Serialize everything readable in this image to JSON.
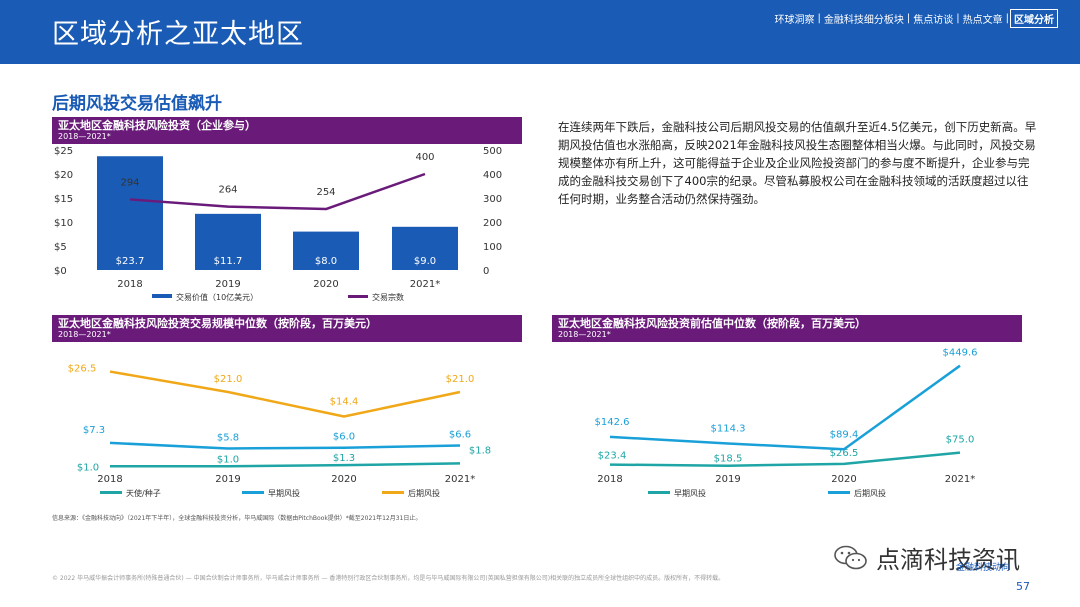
{
  "header": {
    "title": "区域分析之亚太地区",
    "nav": [
      {
        "label": "环球洞察",
        "active": false
      },
      {
        "label": "金融科技细分板块",
        "active": false
      },
      {
        "label": "焦点访谈",
        "active": false
      },
      {
        "label": "热点文章",
        "active": false
      },
      {
        "label": "区域分析",
        "active": true
      }
    ],
    "nav_separator": "|"
  },
  "section_title": "后期风投交易估值飙升",
  "body_text": "在连续两年下跌后，金融科技公司后期风投交易的估值飙升至近4.5亿美元，创下历史新高。早期风投估值也水涨船高，反映2021年金融科技风投生态圈整体相当火爆。与此同时，风投交易规模整体亦有所上升，这可能得益于企业及企业风险投资部门的参与度不断提升，企业参与完成的金融科技交易创下了400宗的纪录。尽管私募股权公司在金融科技领域的活跃度超过以往任何时期，业务整合活动仍然保持强劲。",
  "source": "信息来源：《金融科技动向》（2021年下半年），全球金融科技投资分析，毕马威国际（数据由PitchBook提供）*截至2021年12月31日止。",
  "footer_note": "© 2022 毕马威华振会计师事务所(特殊普通合伙) — 中国合伙制会计师事务所，毕马威会计师事务所 — 香港特别行政区合伙制事务所，均是与毕马威国际有限公司(英国私营担保有限公司)相关联的独立成员所全球性组织中的成员。版权所有，不得转载。",
  "watermark": "点滴科技资讯",
  "footer_link": "金融科技动向",
  "page_number": "57",
  "colors": {
    "header": "#1a5bb5",
    "chart_header": "#6a1b7a",
    "bar": "#1a5bb5",
    "line_purple": "#6a1b7a",
    "angel": "#1fa5a5",
    "early": "#1aa0d8",
    "late": "#f0a818"
  },
  "chart_data": [
    {
      "type": "bar",
      "title": "亚太地区金融科技风险投资（企业参与）",
      "subtitle": "2018—2021*",
      "categories": [
        "2018",
        "2019",
        "2020",
        "2021*"
      ],
      "series": [
        {
          "name": "交易价值（10亿美元）",
          "values": [
            23.7,
            11.7,
            8.0,
            9.0
          ],
          "labels": [
            "$23.7",
            "$11.7",
            "$8.0",
            "$9.0"
          ],
          "axis": "left"
        },
        {
          "name": "交易宗数",
          "type": "line",
          "values": [
            294,
            264,
            254,
            400
          ],
          "labels": [
            "294",
            "264",
            "254",
            "400"
          ],
          "axis": "right"
        }
      ],
      "y_left_ticks": [
        "$25",
        "$20",
        "$15",
        "$10",
        "$5",
        "$0"
      ],
      "y_left_range": [
        0,
        25
      ],
      "y_right_ticks": [
        "500",
        "400",
        "300",
        "200",
        "100",
        "0"
      ],
      "y_right_range": [
        0,
        500
      ]
    },
    {
      "type": "line",
      "title": "亚太地区金融科技风险投资交易规模中位数（按阶段，百万美元）",
      "subtitle": "2018—2021*",
      "categories": [
        "2018",
        "2019",
        "2020",
        "2021*"
      ],
      "y_range": [
        0,
        28
      ],
      "series": [
        {
          "name": "天使/种子",
          "values": [
            1.0,
            1.0,
            1.3,
            1.8
          ],
          "labels": [
            "$1.0",
            "$1.0",
            "$1.3",
            "$1.8"
          ]
        },
        {
          "name": "早期风投",
          "values": [
            7.3,
            5.8,
            6.0,
            6.6
          ],
          "labels": [
            "$7.3",
            "$5.8",
            "$6.0",
            "$6.6"
          ]
        },
        {
          "name": "后期风投",
          "values": [
            26.5,
            21.0,
            14.4,
            21.0
          ],
          "labels": [
            "$26.5",
            "$21.0",
            "$14.4",
            "$21.0"
          ]
        }
      ]
    },
    {
      "type": "line",
      "title": "亚太地区金融科技风险投资前估值中位数（按阶段，百万美元）",
      "subtitle": "2018—2021*",
      "categories": [
        "2018",
        "2019",
        "2020",
        "2021*"
      ],
      "y_range": [
        0,
        500
      ],
      "series": [
        {
          "name": "早期风投",
          "values": [
            23.4,
            18.5,
            26.5,
            75.0
          ],
          "labels": [
            "$23.4",
            "$18.5",
            "$26.5",
            "$75.0"
          ]
        },
        {
          "name": "后期风投",
          "values": [
            142.6,
            114.3,
            89.4,
            449.6
          ],
          "labels": [
            "$142.6",
            "$114.3",
            "$89.4",
            "$449.6"
          ]
        }
      ]
    }
  ]
}
